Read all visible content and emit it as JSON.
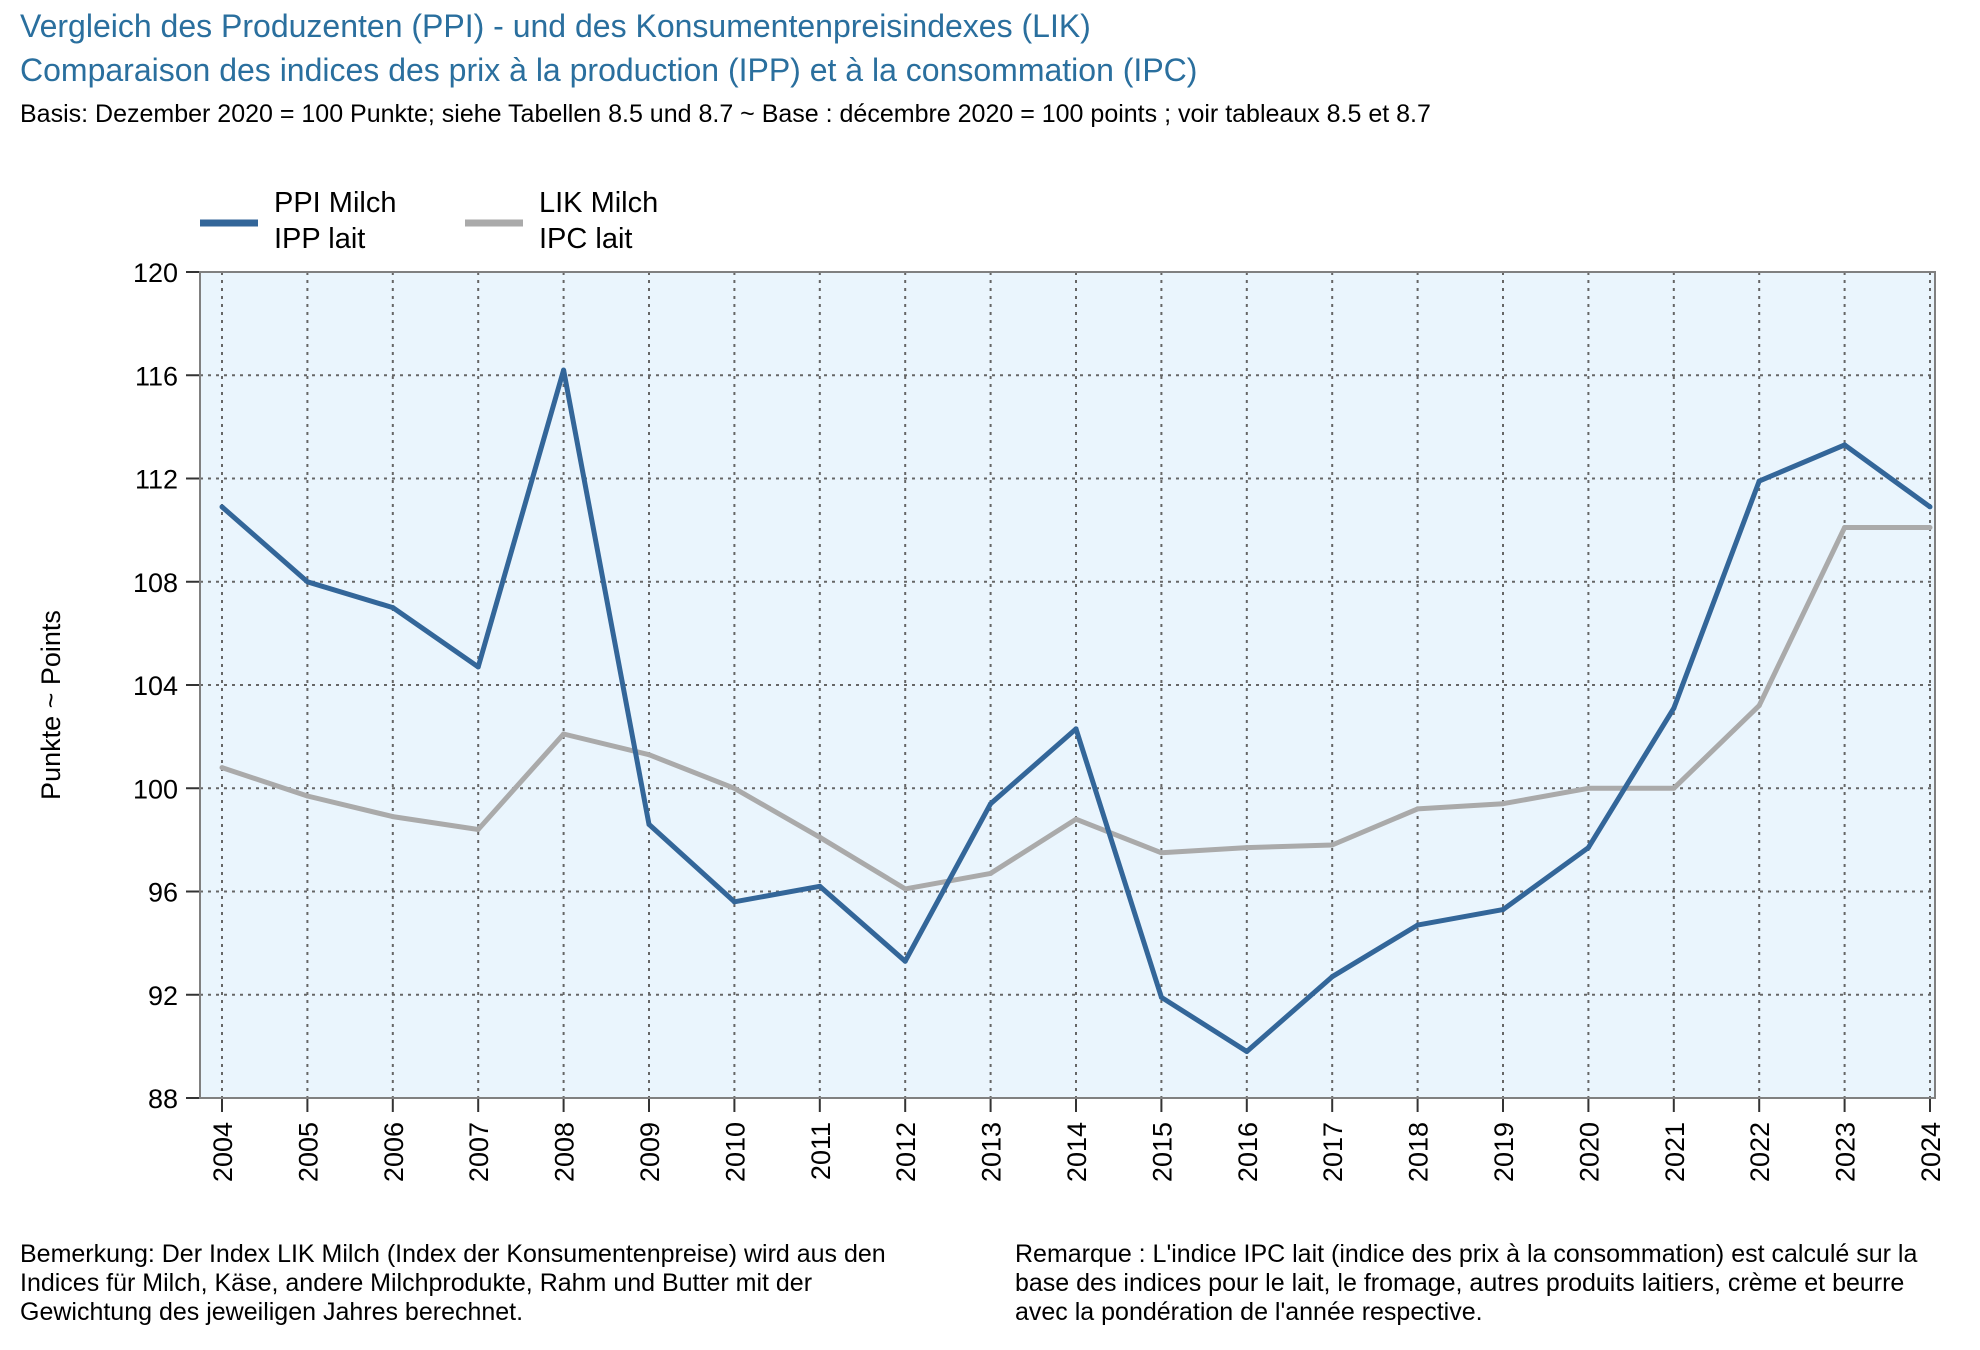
{
  "header": {
    "title_de": "Vergleich des Produzenten (PPI) - und des Konsumentenpreisindexes (LIK)",
    "title_fr": "Comparaison des indices des prix à la production (IPP) et à la consommation (IPC)",
    "subtitle": "Basis: Dezember 2020 = 100 Punkte; siehe Tabellen 8.5 und 8.7   ~   Base : décembre 2020 = 100 points ; voir tableaux 8.5 et 8.7"
  },
  "notes": {
    "de": "Bemerkung: Der Index LIK Milch (Index der Konsumentenpreise) wird aus den Indices für Milch, Käse, andere Milchprodukte, Rahm und Butter mit der Gewichtung des jeweiligen Jahres berechnet.",
    "fr": "Remarque : L'indice IPC lait (indice des prix à la consommation) est calculé sur la base des indices pour le lait, le fromage, autres produits laitiers, crème et beurre avec la pondération de l'année respective."
  },
  "colors": {
    "title": "#2a6f9e",
    "plot_background": "#eaf5fd",
    "grid": "#666666",
    "frame": "#808080",
    "ppi": "#336699",
    "lik": "#aaaaaa"
  },
  "chart_data": {
    "type": "line",
    "ylabel": "Punkte   ~   Points",
    "ylim": [
      88,
      120
    ],
    "yticks": [
      88,
      92,
      96,
      100,
      104,
      108,
      112,
      116,
      120
    ],
    "grid": true,
    "legend_position": "top-left",
    "x": [
      "2004",
      "2005",
      "2006",
      "2007",
      "2008",
      "2009",
      "2010",
      "2011",
      "2012",
      "2013",
      "2014",
      "2015",
      "2016",
      "2017",
      "2018",
      "2019",
      "2020",
      "2021",
      "2022",
      "2023",
      "2024"
    ],
    "series": [
      {
        "name": "PPI Milch",
        "name_fr": "IPP lait",
        "color": "#336699",
        "values": [
          110.9,
          108.0,
          107.0,
          104.7,
          116.2,
          98.6,
          95.6,
          96.2,
          93.3,
          99.4,
          102.3,
          91.9,
          89.8,
          92.7,
          94.7,
          95.3,
          97.7,
          103.1,
          111.9,
          113.3,
          110.9
        ]
      },
      {
        "name": "LIK Milch",
        "name_fr": "IPC lait",
        "color": "#aaaaaa",
        "values": [
          100.8,
          99.7,
          98.9,
          98.4,
          102.1,
          101.3,
          100.0,
          98.1,
          96.1,
          96.7,
          98.8,
          97.5,
          97.7,
          97.8,
          99.2,
          99.4,
          100.0,
          100.0,
          103.2,
          110.1,
          110.1
        ]
      }
    ]
  }
}
